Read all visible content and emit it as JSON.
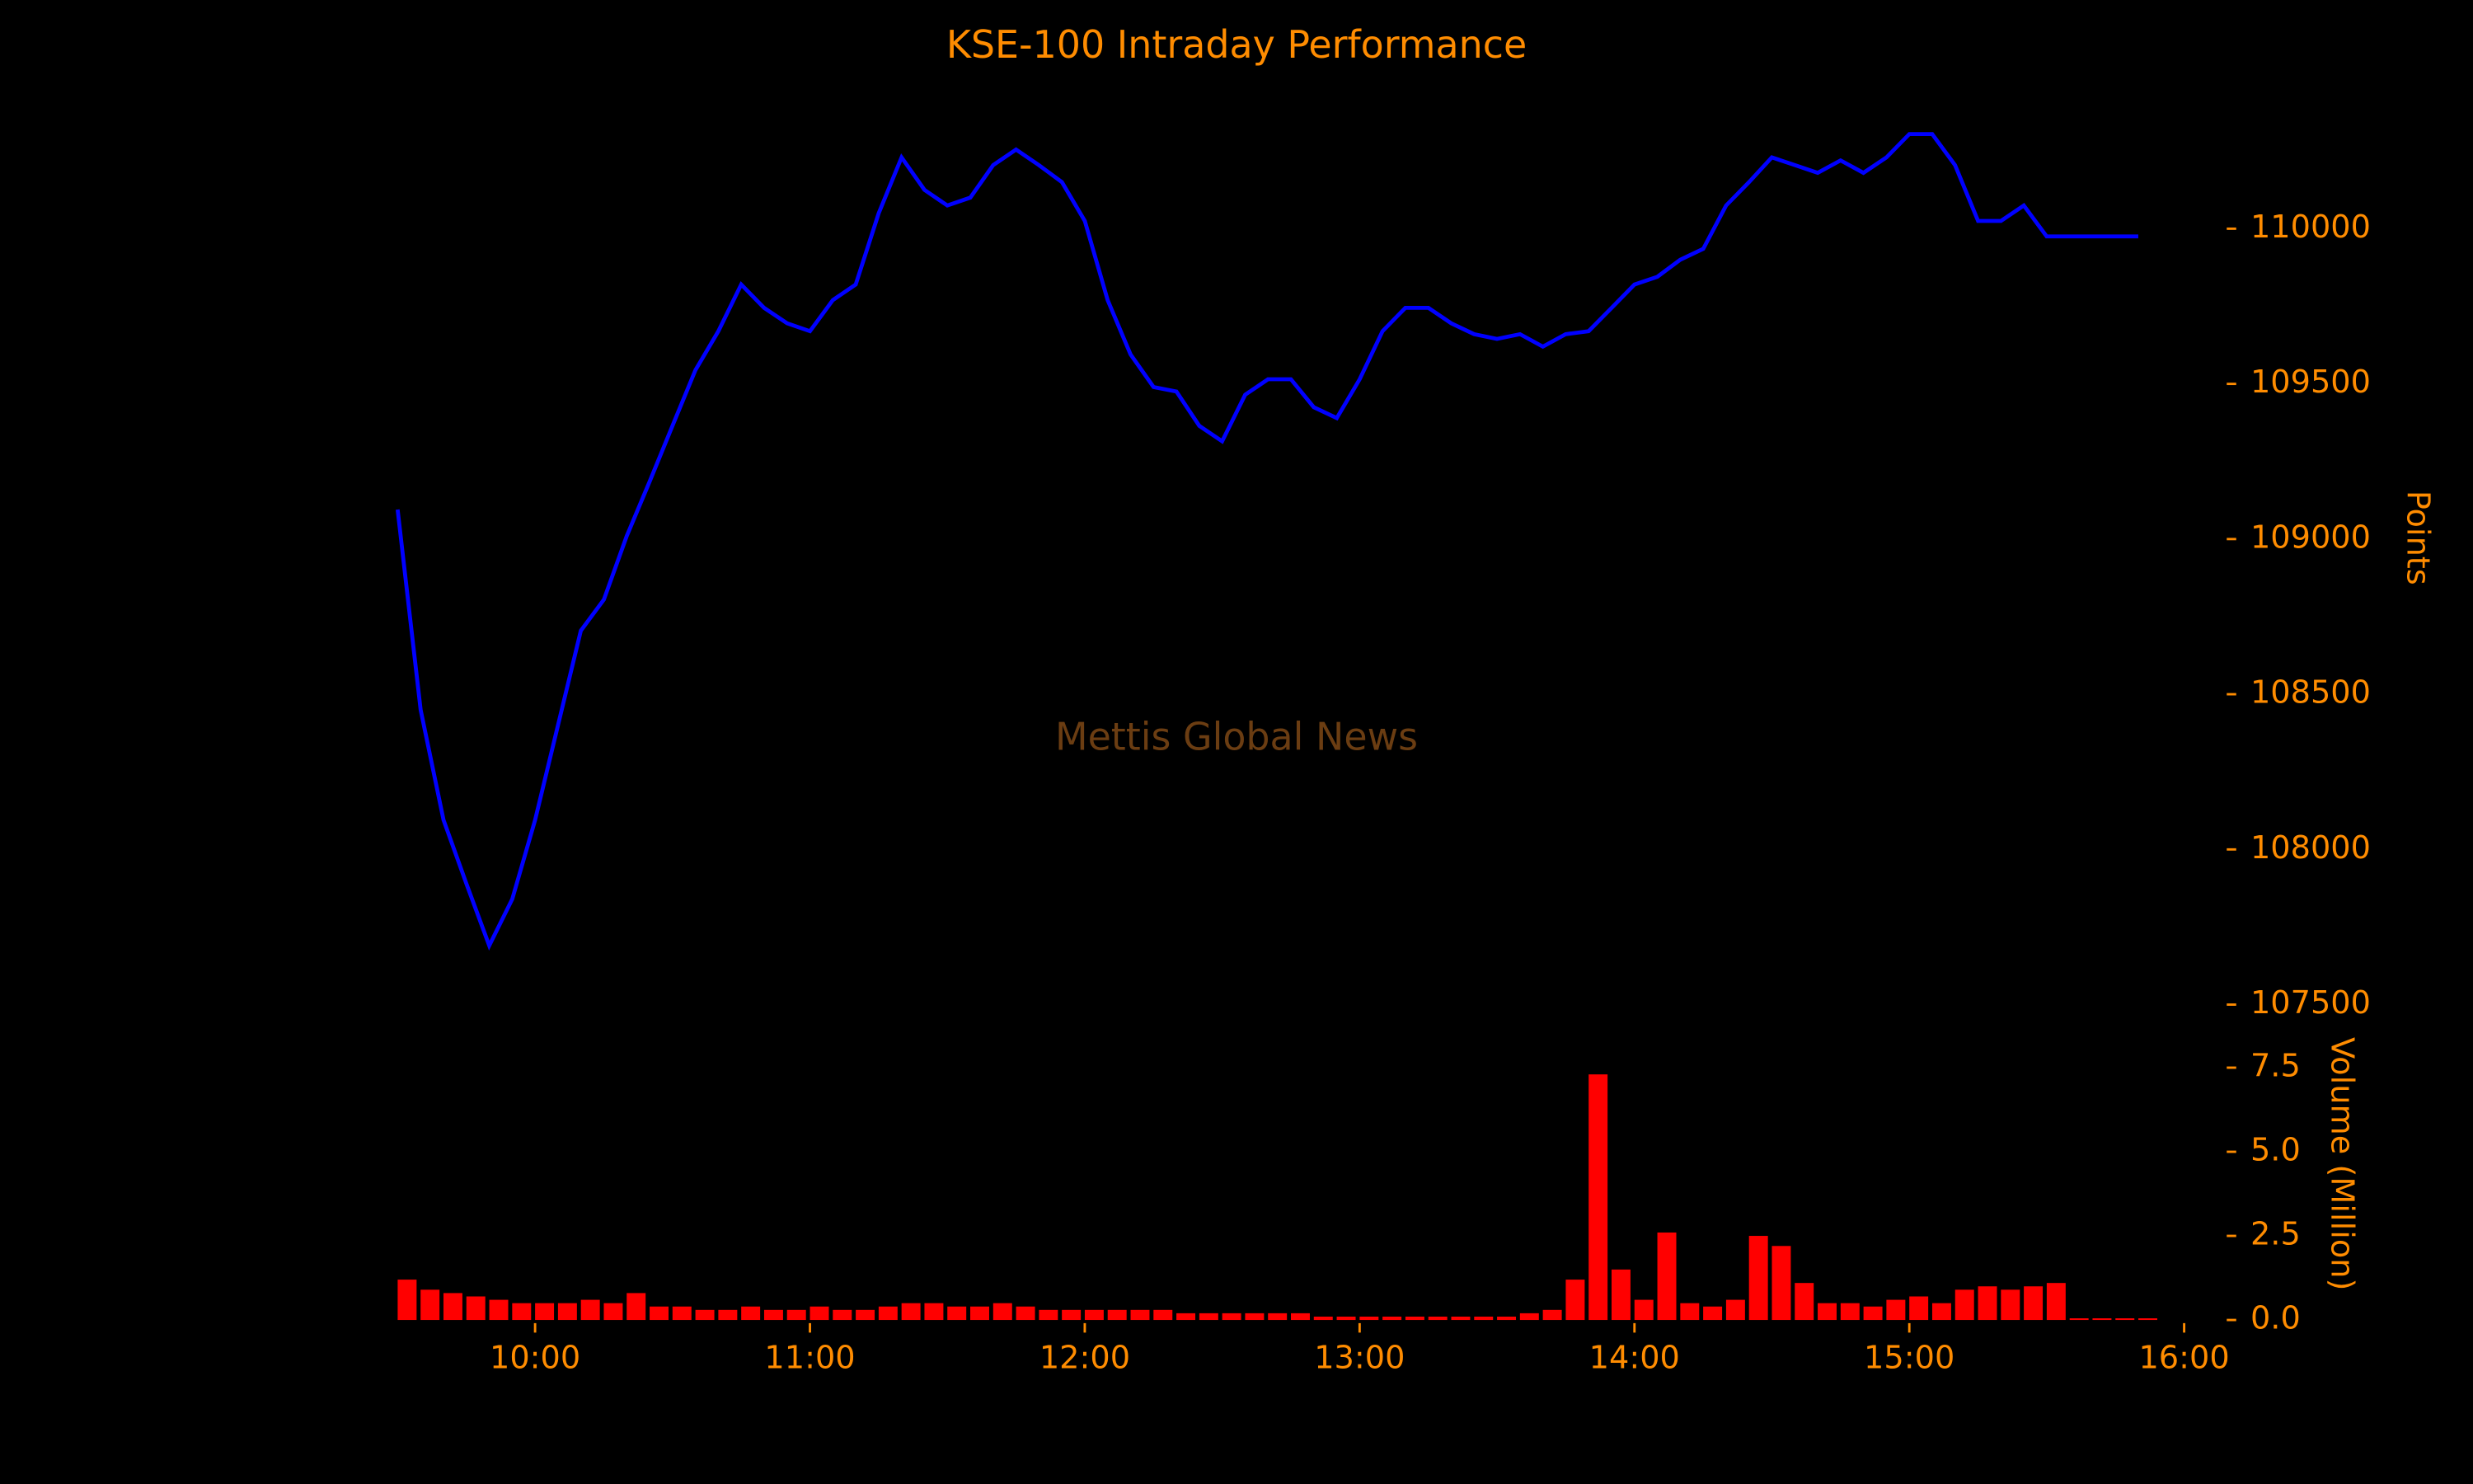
{
  "chart_data": [
    {
      "type": "line",
      "title": "KSE-100 Intraday Performance",
      "ylabel": "Points",
      "annotation": "Mettis Global News",
      "x": [
        "09:30",
        "09:35",
        "09:40",
        "09:45",
        "09:50",
        "09:55",
        "10:00",
        "10:05",
        "10:10",
        "10:15",
        "10:20",
        "10:25",
        "10:30",
        "10:35",
        "10:40",
        "10:45",
        "10:50",
        "10:55",
        "11:00",
        "11:05",
        "11:10",
        "11:15",
        "11:20",
        "11:25",
        "11:30",
        "11:35",
        "11:40",
        "11:45",
        "11:50",
        "11:55",
        "12:00",
        "12:05",
        "12:10",
        "12:15",
        "12:20",
        "12:25",
        "12:30",
        "12:35",
        "12:40",
        "12:45",
        "12:50",
        "12:55",
        "13:00",
        "13:05",
        "13:10",
        "13:15",
        "13:20",
        "13:25",
        "13:30",
        "13:35",
        "13:40",
        "13:45",
        "13:50",
        "13:55",
        "14:00",
        "14:05",
        "14:10",
        "14:15",
        "14:20",
        "14:25",
        "14:30",
        "14:35",
        "14:40",
        "14:45",
        "14:50",
        "14:55",
        "15:00",
        "15:05",
        "15:10",
        "15:15",
        "15:20",
        "15:25",
        "15:30",
        "15:35",
        "15:40",
        "15:45",
        "15:50"
      ],
      "series": [
        {
          "color": "#0000ff",
          "values": [
            109095,
            108450,
            108095,
            107890,
            107690,
            107840,
            108095,
            108400,
            108705,
            108805,
            109010,
            109185,
            109365,
            109545,
            109670,
            109820,
            109745,
            109695,
            109670,
            109770,
            109820,
            110050,
            110230,
            110125,
            110075,
            110100,
            110205,
            110255,
            110205,
            110150,
            110025,
            109770,
            109595,
            109490,
            109475,
            109365,
            109315,
            109465,
            109515,
            109515,
            109425,
            109390,
            109515,
            109670,
            109745,
            109745,
            109695,
            109660,
            109645,
            109660,
            109620,
            109660,
            109670,
            109745,
            109820,
            109845,
            109900,
            109935,
            110075,
            110150,
            110230,
            110205,
            110180,
            110220,
            110180,
            110230,
            110305,
            110305,
            110205,
            110025,
            110025,
            110075,
            109975,
            109975,
            109975,
            109975,
            109975
          ]
        }
      ],
      "xlim": [
        "09:25",
        "16:03"
      ],
      "ylim": [
        107400,
        110400
      ],
      "yticks": [
        107500,
        108000,
        108500,
        109000,
        109500,
        110000
      ]
    },
    {
      "type": "bar",
      "ylabel": "Volume (Million)",
      "x": [
        "09:30",
        "09:35",
        "09:40",
        "09:45",
        "09:50",
        "09:55",
        "10:00",
        "10:05",
        "10:10",
        "10:15",
        "10:20",
        "10:25",
        "10:30",
        "10:35",
        "10:40",
        "10:45",
        "10:50",
        "10:55",
        "11:00",
        "11:05",
        "11:10",
        "11:15",
        "11:20",
        "11:25",
        "11:30",
        "11:35",
        "11:40",
        "11:45",
        "11:50",
        "11:55",
        "12:00",
        "12:05",
        "12:10",
        "12:15",
        "12:20",
        "12:25",
        "12:30",
        "12:35",
        "12:40",
        "12:45",
        "12:50",
        "12:55",
        "13:00",
        "13:05",
        "13:10",
        "13:15",
        "13:20",
        "13:25",
        "13:30",
        "13:35",
        "13:40",
        "13:45",
        "13:50",
        "13:55",
        "14:00",
        "14:05",
        "14:10",
        "14:15",
        "14:20",
        "14:25",
        "14:30",
        "14:35",
        "14:40",
        "14:45",
        "14:50",
        "14:55",
        "15:00",
        "15:05",
        "15:10",
        "15:15",
        "15:20",
        "15:25",
        "15:30",
        "15:35",
        "15:40",
        "15:45",
        "15:50"
      ],
      "series": [
        {
          "color": "#ff0000",
          "values": [
            1.2,
            0.9,
            0.8,
            0.7,
            0.6,
            0.5,
            0.5,
            0.5,
            0.6,
            0.5,
            0.8,
            0.4,
            0.4,
            0.3,
            0.3,
            0.4,
            0.3,
            0.3,
            0.4,
            0.3,
            0.3,
            0.4,
            0.5,
            0.5,
            0.4,
            0.4,
            0.5,
            0.4,
            0.3,
            0.3,
            0.3,
            0.3,
            0.3,
            0.3,
            0.2,
            0.2,
            0.2,
            0.2,
            0.2,
            0.2,
            0.1,
            0.1,
            0.1,
            0.1,
            0.1,
            0.1,
            0.1,
            0.1,
            0.1,
            0.2,
            0.3,
            1.2,
            7.3,
            1.5,
            0.6,
            2.6,
            0.5,
            0.4,
            0.6,
            2.5,
            2.2,
            1.1,
            0.5,
            0.5,
            0.4,
            0.6,
            0.7,
            0.5,
            0.9,
            1.0,
            0.9,
            1.0,
            1.1,
            0.05,
            0.05,
            0.05,
            0.05
          ]
        }
      ],
      "xlim": [
        "09:25",
        "16:03"
      ],
      "ylim": [
        0,
        9
      ],
      "xticks": [
        "10:00",
        "11:00",
        "12:00",
        "13:00",
        "14:00",
        "15:00",
        "16:00"
      ],
      "yticks": [
        {
          "value": 0,
          "label": "0.0"
        },
        2.5,
        {
          "value": 5,
          "label": "5.0"
        },
        7.5
      ]
    }
  ]
}
